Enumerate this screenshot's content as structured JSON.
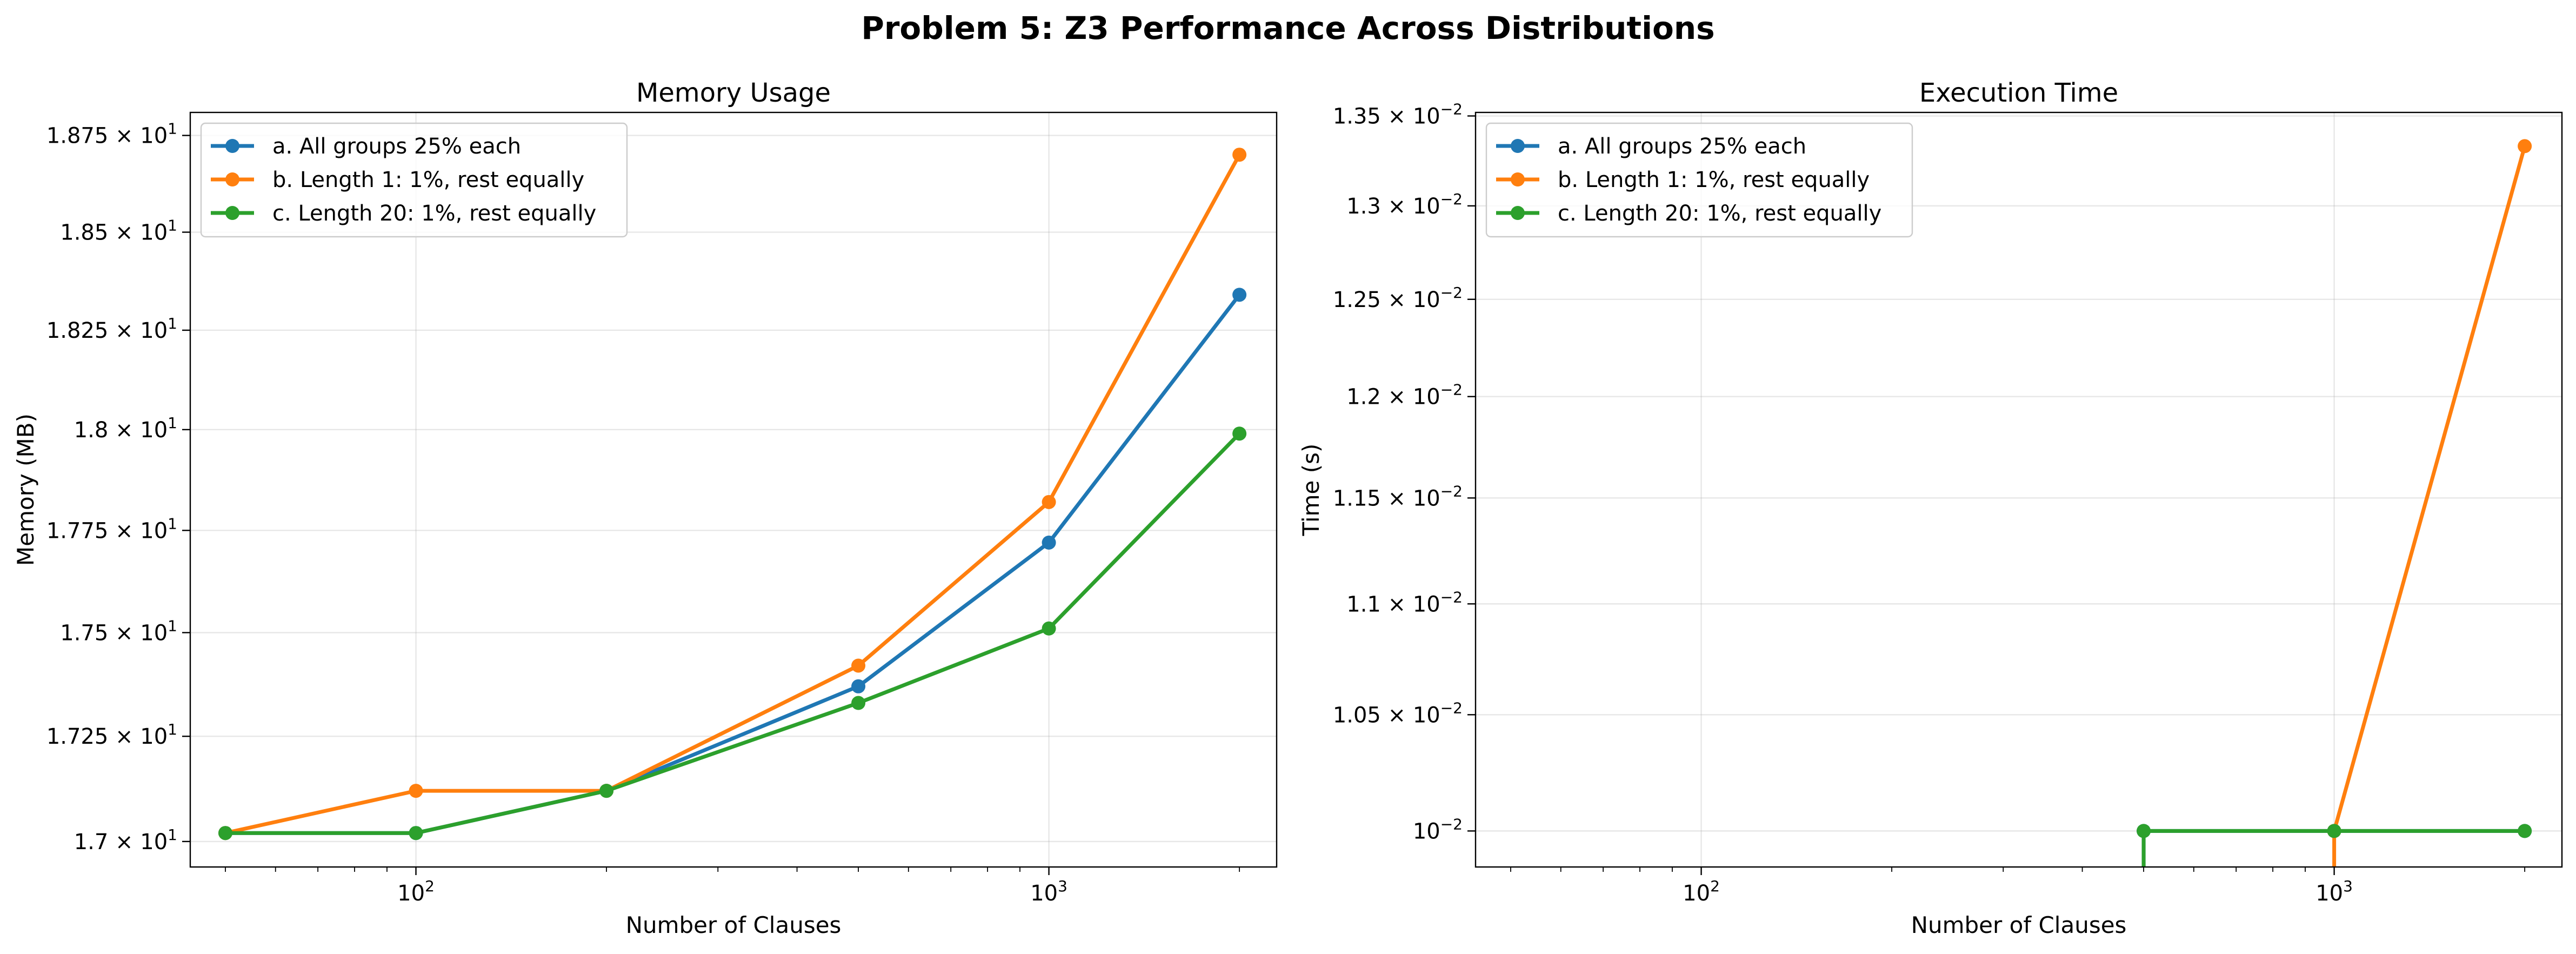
{
  "figure": {
    "suptitle": "Problem 5: Z3 Performance Across Distributions"
  },
  "series_colors": [
    "#1f77b4",
    "#ff7f0e",
    "#2ca02c"
  ],
  "chart_data": [
    {
      "type": "line",
      "title": "Memory Usage",
      "xlabel": "Number of Clauses",
      "ylabel": "Memory (MB)",
      "xscale": "log",
      "yscale": "log",
      "xlim": [
        44,
        2290
      ],
      "ylim": [
        16.94,
        18.81
      ],
      "grid": "on",
      "legend_position": "top-left",
      "x_major_ticks": [
        {
          "value": 100,
          "base": "10",
          "exp": "2"
        },
        {
          "value": 1000,
          "base": "10",
          "exp": "3"
        }
      ],
      "y_ticks": [
        {
          "value": 17.0,
          "mantissa": "1.7",
          "base": "10",
          "exp": "1"
        },
        {
          "value": 17.25,
          "mantissa": "1.725",
          "base": "10",
          "exp": "1"
        },
        {
          "value": 17.5,
          "mantissa": "1.75",
          "base": "10",
          "exp": "1"
        },
        {
          "value": 17.75,
          "mantissa": "1.775",
          "base": "10",
          "exp": "1"
        },
        {
          "value": 18.0,
          "mantissa": "1.8",
          "base": "10",
          "exp": "1"
        },
        {
          "value": 18.25,
          "mantissa": "1.825",
          "base": "10",
          "exp": "1"
        },
        {
          "value": 18.5,
          "mantissa": "1.85",
          "base": "10",
          "exp": "1"
        },
        {
          "value": 18.75,
          "mantissa": "1.875",
          "base": "10",
          "exp": "1"
        }
      ],
      "x": [
        50,
        100,
        200,
        500,
        1000,
        2000
      ],
      "series": [
        {
          "name": "a. All groups 25% each",
          "values": [
            17.02,
            17.02,
            17.12,
            17.37,
            17.72,
            18.34
          ]
        },
        {
          "name": "b. Length 1: 1%, rest equally",
          "values": [
            17.02,
            17.12,
            17.12,
            17.42,
            17.82,
            18.7
          ]
        },
        {
          "name": "c. Length 20: 1%, rest equally",
          "values": [
            17.02,
            17.02,
            17.12,
            17.33,
            17.51,
            17.99
          ]
        }
      ]
    },
    {
      "type": "line",
      "title": "Execution Time",
      "xlabel": "Number of Clauses",
      "ylabel": "Time (s)",
      "xscale": "log",
      "yscale": "log",
      "xlim": [
        44,
        2290
      ],
      "ylim": [
        0.00985,
        0.01352
      ],
      "grid": "on",
      "legend_position": "top-left",
      "x_major_ticks": [
        {
          "value": 100,
          "base": "10",
          "exp": "2"
        },
        {
          "value": 1000,
          "base": "10",
          "exp": "3"
        }
      ],
      "y_ticks": [
        {
          "value": 0.01,
          "mantissa": "",
          "base": "10",
          "exp": "−2"
        },
        {
          "value": 0.0105,
          "mantissa": "1.05",
          "base": "10",
          "exp": "−2"
        },
        {
          "value": 0.011,
          "mantissa": "1.1",
          "base": "10",
          "exp": "−2"
        },
        {
          "value": 0.0115,
          "mantissa": "1.15",
          "base": "10",
          "exp": "−2"
        },
        {
          "value": 0.012,
          "mantissa": "1.2",
          "base": "10",
          "exp": "−2"
        },
        {
          "value": 0.0125,
          "mantissa": "1.25",
          "base": "10",
          "exp": "−2"
        },
        {
          "value": 0.013,
          "mantissa": "1.3",
          "base": "10",
          "exp": "−2"
        },
        {
          "value": 0.0135,
          "mantissa": "1.35",
          "base": "10",
          "exp": "−2"
        }
      ],
      "x": [
        50,
        100,
        200,
        500,
        1000,
        2000
      ],
      "series": [
        {
          "name": "a. All groups 25% each",
          "values": [
            0,
            0,
            0,
            0.01,
            0.01,
            0.01
          ]
        },
        {
          "name": "b. Length 1: 1%, rest equally",
          "values": [
            0,
            0,
            0,
            0,
            0.01,
            0.01333
          ]
        },
        {
          "name": "c. Length 20: 1%, rest equally",
          "values": [
            0,
            0,
            0,
            0.01,
            0.01,
            0.01
          ]
        }
      ]
    }
  ]
}
